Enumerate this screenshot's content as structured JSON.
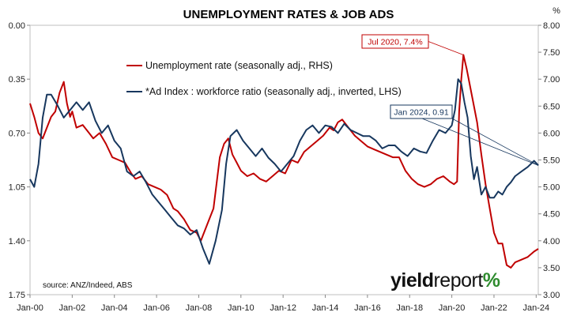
{
  "chart_data": {
    "type": "line",
    "title": "UNEMPLOYMENT RATES & JOB ADS",
    "right_axis_unit": "%",
    "left_axis": {
      "ylim": [
        0.0,
        1.75
      ],
      "inverted": true,
      "tick_labels": [
        "0.00",
        "0.35",
        "0.70",
        "1.05",
        "1.40",
        "1.75"
      ]
    },
    "right_axis": {
      "ylim": [
        3.0,
        8.0
      ],
      "tick_labels": [
        "3.00",
        "3.50",
        "4.00",
        "4.50",
        "5.00",
        "5.50",
        "6.00",
        "6.50",
        "7.00",
        "7.50",
        "8.00"
      ]
    },
    "x_tick_labels": [
      "Jan-00",
      "Jan-02",
      "Jan-04",
      "Jan-06",
      "Jan-08",
      "Jan-10",
      "Jan-12",
      "Jan-14",
      "Jan-16",
      "Jan-18",
      "Jan-20",
      "Jan-22",
      "Jan-24"
    ],
    "x_range": [
      2000.0,
      2024.1
    ],
    "grid": "none",
    "legend": "upper-left",
    "series": [
      {
        "name": "Unemployment rate (seasonally adj., RHS)",
        "axis": "right",
        "color": "#c00000",
        "x": [
          2000.0,
          2000.2,
          2000.4,
          2000.6,
          2000.8,
          2001.0,
          2001.2,
          2001.4,
          2001.6,
          2001.75,
          2001.9,
          2002.0,
          2002.2,
          2002.5,
          2002.8,
          2003.0,
          2003.3,
          2003.6,
          2003.9,
          2004.2,
          2004.5,
          2004.8,
          2005.0,
          2005.3,
          2005.6,
          2005.9,
          2006.2,
          2006.5,
          2006.8,
          2007.0,
          2007.3,
          2007.6,
          2007.9,
          2008.1,
          2008.4,
          2008.7,
          2009.0,
          2009.2,
          2009.4,
          2009.6,
          2009.8,
          2010.0,
          2010.3,
          2010.6,
          2010.9,
          2011.2,
          2011.5,
          2011.8,
          2012.1,
          2012.4,
          2012.7,
          2013.0,
          2013.3,
          2013.6,
          2013.9,
          2014.2,
          2014.4,
          2014.6,
          2014.8,
          2015.1,
          2015.4,
          2015.7,
          2016.0,
          2016.3,
          2016.6,
          2016.9,
          2017.2,
          2017.5,
          2017.8,
          2018.1,
          2018.4,
          2018.7,
          2019.0,
          2019.3,
          2019.6,
          2019.9,
          2020.1,
          2020.25,
          2020.35,
          2020.45,
          2020.55,
          2020.7,
          2020.85,
          2021.0,
          2021.2,
          2021.4,
          2021.6,
          2021.8,
          2022.0,
          2022.2,
          2022.4,
          2022.6,
          2022.8,
          2023.0,
          2023.3,
          2023.6,
          2023.9,
          2024.1
        ],
        "values": [
          6.55,
          6.3,
          6.0,
          5.9,
          6.1,
          6.3,
          6.4,
          6.75,
          6.95,
          6.55,
          6.3,
          6.4,
          6.1,
          6.15,
          6.0,
          5.9,
          6.0,
          5.8,
          5.55,
          5.5,
          5.45,
          5.25,
          5.15,
          5.2,
          5.05,
          5.0,
          4.95,
          4.85,
          4.6,
          4.55,
          4.4,
          4.2,
          4.15,
          4.0,
          4.3,
          4.6,
          5.55,
          5.8,
          5.9,
          5.6,
          5.45,
          5.3,
          5.2,
          5.25,
          5.15,
          5.1,
          5.2,
          5.3,
          5.25,
          5.5,
          5.45,
          5.65,
          5.75,
          5.85,
          5.95,
          6.1,
          6.05,
          6.2,
          6.25,
          6.1,
          5.95,
          5.85,
          5.75,
          5.7,
          5.65,
          5.6,
          5.55,
          5.55,
          5.3,
          5.15,
          5.05,
          5.0,
          5.05,
          5.15,
          5.2,
          5.1,
          5.05,
          5.1,
          6.4,
          7.0,
          7.45,
          7.2,
          6.9,
          6.6,
          6.2,
          5.6,
          5.05,
          4.6,
          4.15,
          3.95,
          3.95,
          3.55,
          3.5,
          3.6,
          3.65,
          3.7,
          3.8,
          3.85
        ]
      },
      {
        "name": "*Ad Index : workforce ratio (seasonally adj., inverted, LHS)",
        "axis": "left",
        "color": "#17375e",
        "x": [
          2000.0,
          2000.2,
          2000.4,
          2000.6,
          2000.8,
          2001.0,
          2001.3,
          2001.6,
          2001.9,
          2002.2,
          2002.5,
          2002.8,
          2003.1,
          2003.4,
          2003.7,
          2004.0,
          2004.3,
          2004.6,
          2004.9,
          2005.2,
          2005.5,
          2005.8,
          2006.1,
          2006.4,
          2006.7,
          2007.0,
          2007.3,
          2007.6,
          2007.9,
          2008.2,
          2008.5,
          2008.8,
          2009.1,
          2009.3,
          2009.5,
          2009.8,
          2010.1,
          2010.4,
          2010.7,
          2011.0,
          2011.3,
          2011.6,
          2011.9,
          2012.2,
          2012.5,
          2012.8,
          2013.1,
          2013.4,
          2013.7,
          2014.0,
          2014.3,
          2014.6,
          2014.9,
          2015.2,
          2015.5,
          2015.8,
          2016.1,
          2016.4,
          2016.7,
          2017.0,
          2017.3,
          2017.6,
          2017.9,
          2018.2,
          2018.5,
          2018.8,
          2019.1,
          2019.4,
          2019.7,
          2020.0,
          2020.15,
          2020.3,
          2020.45,
          2020.6,
          2020.75,
          2020.9,
          2021.05,
          2021.2,
          2021.4,
          2021.6,
          2021.8,
          2022.0,
          2022.2,
          2022.4,
          2022.6,
          2022.8,
          2023.0,
          2023.3,
          2023.6,
          2023.9,
          2024.1
        ],
        "values": [
          1.0,
          1.05,
          0.9,
          0.6,
          0.45,
          0.45,
          0.52,
          0.6,
          0.55,
          0.5,
          0.55,
          0.5,
          0.62,
          0.7,
          0.65,
          0.75,
          0.8,
          0.95,
          0.98,
          0.95,
          1.02,
          1.1,
          1.15,
          1.2,
          1.25,
          1.3,
          1.32,
          1.36,
          1.33,
          1.45,
          1.55,
          1.4,
          1.2,
          0.9,
          0.72,
          0.68,
          0.75,
          0.8,
          0.85,
          0.8,
          0.86,
          0.9,
          0.95,
          0.9,
          0.85,
          0.75,
          0.68,
          0.65,
          0.7,
          0.65,
          0.66,
          0.7,
          0.64,
          0.68,
          0.7,
          0.72,
          0.72,
          0.75,
          0.8,
          0.78,
          0.78,
          0.82,
          0.85,
          0.8,
          0.82,
          0.83,
          0.75,
          0.68,
          0.7,
          0.65,
          0.55,
          0.35,
          0.38,
          0.5,
          0.6,
          0.85,
          1.0,
          0.92,
          1.1,
          1.05,
          1.12,
          1.12,
          1.08,
          1.1,
          1.05,
          1.02,
          0.98,
          0.95,
          0.92,
          0.88,
          0.91
        ]
      }
    ],
    "annotations": [
      {
        "text": "Jul 2020, 7.4%",
        "color": "#c00000",
        "x": 2020.55,
        "y": 7.45,
        "axis": "right"
      },
      {
        "text": "Jan 2024, 0.91",
        "color": "#17375e",
        "x": 2024.1,
        "y": 0.91,
        "axis": "left"
      }
    ]
  },
  "source": "source: ANZ/Indeed, ABS",
  "logo": {
    "word_a": "yield",
    "word_b": "report",
    "symbol": "%"
  }
}
